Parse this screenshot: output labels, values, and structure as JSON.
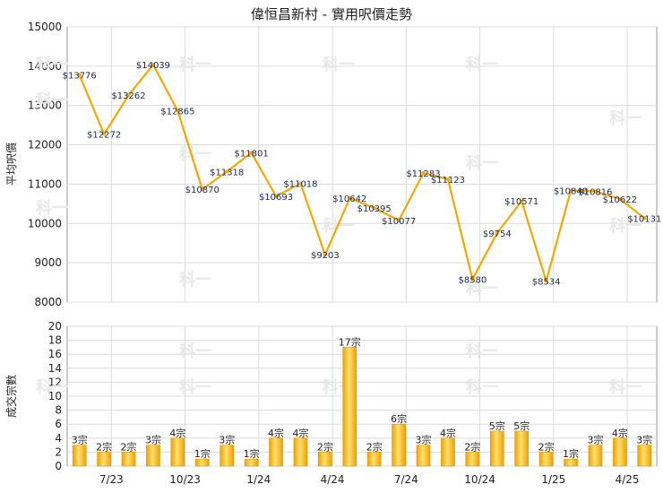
{
  "chart_data": [
    {
      "type": "line",
      "title": "偉恒昌新村 - 實用呎價走勢",
      "ylabel": "平均呎價",
      "ylim": [
        8000,
        15000
      ],
      "yticks": [
        8000,
        9000,
        10000,
        11000,
        12000,
        13000,
        14000,
        15000
      ],
      "color": "#f5a800",
      "series": [
        {
          "values": [
            13776,
            12272,
            13262,
            14039,
            12865,
            10870,
            11318,
            11801,
            10693,
            11018,
            9203,
            10642,
            10395,
            10077,
            11283,
            11123,
            8580,
            9754,
            10571,
            8534,
            10840,
            10816,
            10622,
            10131
          ],
          "labels": [
            "$13776",
            "$12272",
            "$13262",
            "$14039",
            "$12865",
            "$10870",
            "$11318",
            "$11801",
            "$10693",
            "$11018",
            "$9203",
            "$10642",
            "$10395",
            "$10077",
            "$11283",
            "$11123",
            "$8580",
            "$9754",
            "$10571",
            "$8534",
            "$10840",
            "$10816",
            "$10622",
            "$10131"
          ]
        }
      ],
      "grid": true
    },
    {
      "type": "bar",
      "ylabel": "成交宗數",
      "ylim": [
        0,
        20
      ],
      "yticks": [
        0,
        2,
        4,
        6,
        8,
        10,
        12,
        14,
        16,
        18,
        20
      ],
      "categories": [
        "7/23",
        "10/23",
        "1/24",
        "4/24",
        "7/24",
        "10/24",
        "1/25",
        "4/25"
      ],
      "color": "#f5b400",
      "values": [
        3,
        2,
        2,
        3,
        4,
        1,
        3,
        1,
        4,
        4,
        2,
        17,
        2,
        6,
        3,
        4,
        2,
        5,
        5,
        2,
        1,
        3,
        4,
        3
      ],
      "labels": [
        "3宗",
        "2宗",
        "2宗",
        "3宗",
        "4宗",
        "1宗",
        "3宗",
        "1宗",
        "4宗",
        "4宗",
        "2宗",
        "17宗",
        "2宗",
        "6宗",
        "3宗",
        "4宗",
        "2宗",
        "5宗",
        "5宗",
        "2宗",
        "1宗",
        "3宗",
        "4宗",
        "3宗"
      ],
      "grid": true
    }
  ],
  "watermark": "科一"
}
